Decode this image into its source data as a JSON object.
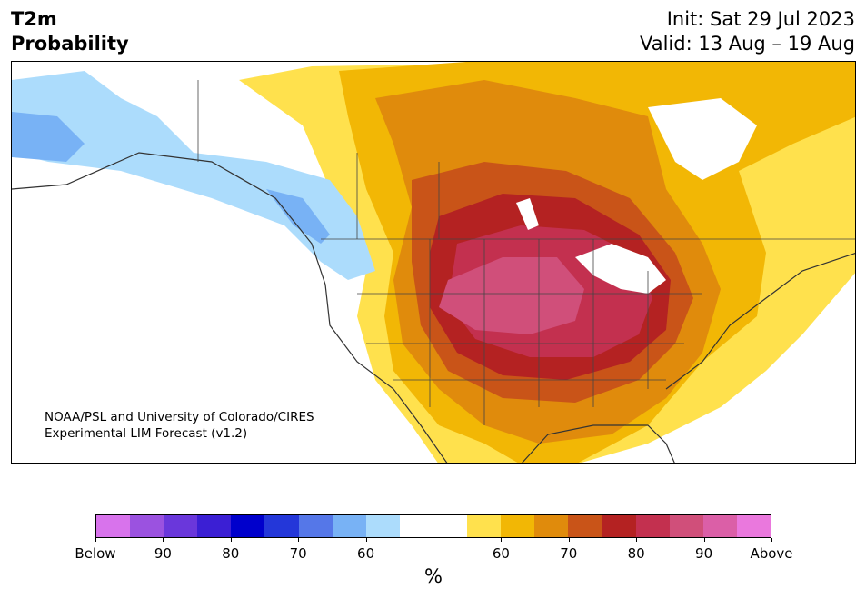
{
  "header": {
    "title_line1": "T2m",
    "title_line2": "Probability",
    "init": "Init: Sat 29 Jul 2023",
    "valid": "Valid: 13 Aug – 19 Aug"
  },
  "credit": {
    "line1": "NOAA/PSL and University of Colorado/CIRES",
    "line2": "Experimental LIM Forecast (v1.2)"
  },
  "colorbar": {
    "unit": "%",
    "colors": [
      "#d873ec",
      "#9b52e0",
      "#6a37db",
      "#3b1fd4",
      "#0000cc",
      "#2437d9",
      "#5577e8",
      "#78b2f5",
      "#acdcfc",
      "#ffffff",
      "#ffffff",
      "#ffe14d",
      "#f2b705",
      "#e08b0c",
      "#c95418",
      "#b42222",
      "#c3304f",
      "#d04f7a",
      "#db5fa7",
      "#ea78dd"
    ],
    "ticks": [
      {
        "label": "Below",
        "index": 0
      },
      {
        "label": "90",
        "index": 2
      },
      {
        "label": "80",
        "index": 4
      },
      {
        "label": "70",
        "index": 6
      },
      {
        "label": "60",
        "index": 8
      },
      {
        "label": "60",
        "index": 12
      },
      {
        "label": "70",
        "index": 14
      },
      {
        "label": "80",
        "index": 16
      },
      {
        "label": "90",
        "index": 18
      },
      {
        "label": "Above",
        "index": 20
      }
    ]
  }
}
